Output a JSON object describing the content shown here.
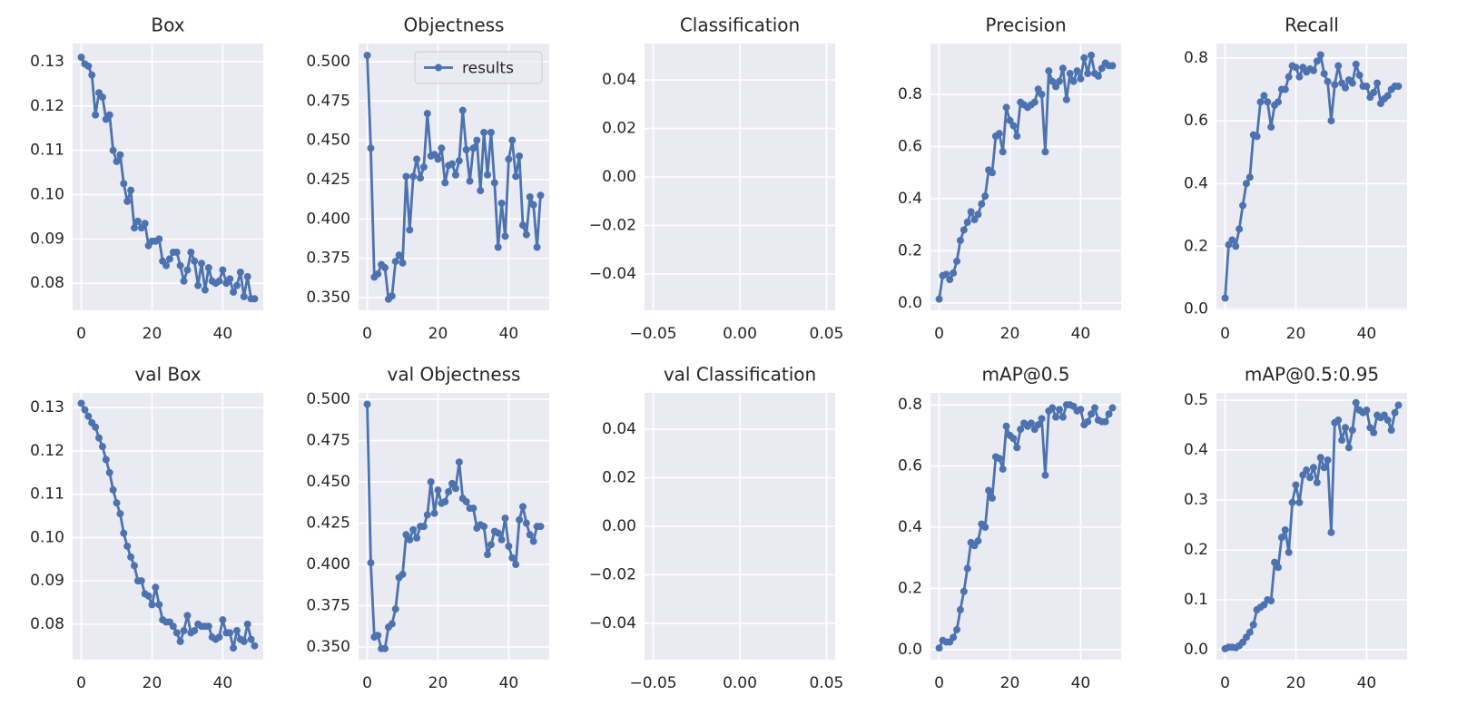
{
  "chart_data": [
    {
      "type": "line",
      "title": "Box",
      "x": [
        0,
        1,
        2,
        3,
        4,
        5,
        6,
        7,
        8,
        9,
        10,
        11,
        12,
        13,
        14,
        15,
        16,
        17,
        18,
        19,
        20,
        21,
        22,
        23,
        24,
        25,
        26,
        27,
        28,
        29,
        30,
        31,
        32,
        33,
        34,
        35,
        36,
        37,
        38,
        39,
        40,
        41,
        42,
        43,
        44,
        45,
        46,
        47,
        48,
        49
      ],
      "series": [
        {
          "color": "#4c72b0",
          "values": [
            0.131,
            0.1295,
            0.129,
            0.127,
            0.118,
            0.123,
            0.122,
            0.117,
            0.118,
            0.11,
            0.1075,
            0.109,
            0.1025,
            0.0985,
            0.101,
            0.0925,
            0.094,
            0.0925,
            0.0935,
            0.0885,
            0.0895,
            0.0895,
            0.09,
            0.085,
            0.084,
            0.0855,
            0.087,
            0.087,
            0.084,
            0.0805,
            0.083,
            0.087,
            0.085,
            0.0795,
            0.0845,
            0.0785,
            0.0835,
            0.0805,
            0.08,
            0.0805,
            0.083,
            0.08,
            0.081,
            0.078,
            0.0795,
            0.0825,
            0.077,
            0.0815,
            0.0765,
            0.0765
          ]
        }
      ],
      "xlim": [
        -2.45,
        51.45
      ],
      "ylim": [
        0.0739,
        0.1341
      ],
      "xticks": [
        0,
        20,
        40
      ],
      "yticks": [
        0.08,
        0.09,
        {
          "value": 0.1,
          "label": "0.10"
        },
        0.11,
        0.12,
        0.13
      ],
      "grid": true
    },
    {
      "type": "line",
      "title": "Objectness",
      "x": [
        0,
        1,
        2,
        3,
        4,
        5,
        6,
        7,
        8,
        9,
        10,
        11,
        12,
        13,
        14,
        15,
        16,
        17,
        18,
        19,
        20,
        21,
        22,
        23,
        24,
        25,
        26,
        27,
        28,
        29,
        30,
        31,
        32,
        33,
        34,
        35,
        36,
        37,
        38,
        39,
        40,
        41,
        42,
        43,
        44,
        45,
        46,
        47,
        48,
        49
      ],
      "series": [
        {
          "name": "results",
          "color": "#4c72b0",
          "values": [
            0.504,
            0.445,
            0.363,
            0.365,
            0.371,
            0.369,
            0.349,
            0.351,
            0.373,
            0.377,
            0.372,
            0.427,
            0.393,
            0.427,
            0.438,
            0.426,
            0.433,
            0.467,
            0.44,
            0.441,
            0.438,
            0.445,
            0.423,
            0.434,
            0.435,
            0.428,
            0.437,
            0.469,
            0.444,
            0.424,
            0.445,
            0.45,
            0.418,
            0.455,
            0.428,
            0.455,
            0.423,
            0.382,
            0.41,
            0.389,
            0.438,
            0.45,
            0.427,
            0.44,
            0.396,
            0.39,
            0.414,
            0.409,
            0.382,
            0.415
          ]
        }
      ],
      "xlim": [
        -2.45,
        51.45
      ],
      "ylim": [
        0.3419,
        0.5115
      ],
      "xticks": [
        0,
        20,
        40
      ],
      "yticks": [
        {
          "value": 0.35,
          "label": "0.350"
        },
        0.375,
        {
          "value": 0.4,
          "label": "0.400"
        },
        0.425,
        {
          "value": 0.45,
          "label": "0.450"
        },
        0.475,
        {
          "value": 0.5,
          "label": "0.500"
        }
      ],
      "grid": true,
      "legend": "upper right"
    },
    {
      "type": "line",
      "title": "Classification",
      "series": [],
      "xlim": [
        -0.055,
        0.055
      ],
      "ylim": [
        -0.055,
        0.055
      ],
      "xticks": [
        {
          "value": -0.05,
          "label": "−0.05"
        },
        {
          "value": 0,
          "label": "0.00"
        },
        0.05
      ],
      "yticks": [
        {
          "value": -0.04,
          "label": "−0.04"
        },
        {
          "value": -0.02,
          "label": "−0.02"
        },
        {
          "value": 0,
          "label": "0.00"
        },
        0.02,
        0.04
      ],
      "grid": true
    },
    {
      "type": "line",
      "title": "Precision",
      "x": [
        0,
        1,
        2,
        3,
        4,
        5,
        6,
        7,
        8,
        9,
        10,
        11,
        12,
        13,
        14,
        15,
        16,
        17,
        18,
        19,
        20,
        21,
        22,
        23,
        24,
        25,
        26,
        27,
        28,
        29,
        30,
        31,
        32,
        33,
        34,
        35,
        36,
        37,
        38,
        39,
        40,
        41,
        42,
        43,
        44,
        45,
        46,
        47,
        48,
        49
      ],
      "series": [
        {
          "color": "#4c72b0",
          "values": [
            0.015,
            0.105,
            0.11,
            0.09,
            0.115,
            0.16,
            0.24,
            0.28,
            0.31,
            0.35,
            0.32,
            0.34,
            0.38,
            0.41,
            0.51,
            0.5,
            0.64,
            0.65,
            0.58,
            0.75,
            0.7,
            0.68,
            0.64,
            0.77,
            0.76,
            0.75,
            0.76,
            0.77,
            0.82,
            0.8,
            0.58,
            0.89,
            0.85,
            0.83,
            0.85,
            0.9,
            0.78,
            0.88,
            0.85,
            0.89,
            0.86,
            0.94,
            0.88,
            0.95,
            0.88,
            0.87,
            0.9,
            0.92,
            0.91,
            0.91
          ]
        }
      ],
      "xlim": [
        -2.45,
        51.45
      ],
      "ylim": [
        -0.028,
        0.995
      ],
      "xticks": [
        0,
        20,
        40
      ],
      "yticks": [
        {
          "value": 0,
          "label": "0.0"
        },
        0.2,
        0.4,
        0.6,
        0.8
      ],
      "grid": true
    },
    {
      "type": "line",
      "title": "Recall",
      "x": [
        0,
        1,
        2,
        3,
        4,
        5,
        6,
        7,
        8,
        9,
        10,
        11,
        12,
        13,
        14,
        15,
        16,
        17,
        18,
        19,
        20,
        21,
        22,
        23,
        24,
        25,
        26,
        27,
        28,
        29,
        30,
        31,
        32,
        33,
        34,
        35,
        36,
        37,
        38,
        39,
        40,
        41,
        42,
        43,
        44,
        45,
        46,
        47,
        48,
        49
      ],
      "series": [
        {
          "color": "#4c72b0",
          "values": [
            0.035,
            0.205,
            0.22,
            0.2,
            0.255,
            0.33,
            0.4,
            0.42,
            0.555,
            0.55,
            0.66,
            0.68,
            0.66,
            0.58,
            0.65,
            0.66,
            0.7,
            0.7,
            0.74,
            0.775,
            0.77,
            0.74,
            0.77,
            0.755,
            0.765,
            0.76,
            0.79,
            0.81,
            0.75,
            0.725,
            0.6,
            0.715,
            0.775,
            0.72,
            0.705,
            0.73,
            0.72,
            0.78,
            0.745,
            0.71,
            0.71,
            0.675,
            0.69,
            0.72,
            0.655,
            0.67,
            0.68,
            0.7,
            0.71,
            0.71
          ]
        }
      ],
      "xlim": [
        -2.45,
        51.45
      ],
      "ylim": [
        -0.004,
        0.846
      ],
      "xticks": [
        0,
        20,
        40
      ],
      "yticks": [
        {
          "value": 0,
          "label": "0.0"
        },
        0.2,
        0.4,
        0.6,
        0.8
      ],
      "grid": true
    },
    {
      "type": "line",
      "title": "val Box",
      "x": [
        0,
        1,
        2,
        3,
        4,
        5,
        6,
        7,
        8,
        9,
        10,
        11,
        12,
        13,
        14,
        15,
        16,
        17,
        18,
        19,
        20,
        21,
        22,
        23,
        24,
        25,
        26,
        27,
        28,
        29,
        30,
        31,
        32,
        33,
        34,
        35,
        36,
        37,
        38,
        39,
        40,
        41,
        42,
        43,
        44,
        45,
        46,
        47,
        48,
        49
      ],
      "series": [
        {
          "color": "#4c72b0",
          "values": [
            0.131,
            0.1295,
            0.128,
            0.1265,
            0.1255,
            0.123,
            0.121,
            0.118,
            0.115,
            0.111,
            0.108,
            0.1055,
            0.101,
            0.098,
            0.0955,
            0.0935,
            0.09,
            0.09,
            0.087,
            0.0865,
            0.0845,
            0.0885,
            0.0845,
            0.081,
            0.0805,
            0.0805,
            0.0795,
            0.078,
            0.076,
            0.0785,
            0.082,
            0.078,
            0.0785,
            0.08,
            0.0795,
            0.0795,
            0.0795,
            0.077,
            0.0765,
            0.077,
            0.081,
            0.078,
            0.078,
            0.0745,
            0.0785,
            0.0765,
            0.076,
            0.08,
            0.0765,
            0.075
          ]
        }
      ],
      "xlim": [
        -2.45,
        51.45
      ],
      "ylim": [
        0.0718,
        0.1334
      ],
      "xticks": [
        0,
        20,
        40
      ],
      "yticks": [
        0.08,
        0.09,
        {
          "value": 0.1,
          "label": "0.10"
        },
        0.11,
        0.12,
        0.13
      ],
      "grid": true
    },
    {
      "type": "line",
      "title": "val Objectness",
      "x": [
        0,
        1,
        2,
        3,
        4,
        5,
        6,
        7,
        8,
        9,
        10,
        11,
        12,
        13,
        14,
        15,
        16,
        17,
        18,
        19,
        20,
        21,
        22,
        23,
        24,
        25,
        26,
        27,
        28,
        29,
        30,
        31,
        32,
        33,
        34,
        35,
        36,
        37,
        38,
        39,
        40,
        41,
        42,
        43,
        44,
        45,
        46,
        47,
        48,
        49
      ],
      "series": [
        {
          "color": "#4c72b0",
          "values": [
            0.497,
            0.401,
            0.356,
            0.357,
            0.349,
            0.349,
            0.362,
            0.364,
            0.373,
            0.392,
            0.394,
            0.418,
            0.415,
            0.421,
            0.416,
            0.423,
            0.423,
            0.43,
            0.45,
            0.431,
            0.445,
            0.437,
            0.438,
            0.444,
            0.449,
            0.446,
            0.462,
            0.44,
            0.438,
            0.434,
            0.434,
            0.422,
            0.424,
            0.423,
            0.406,
            0.412,
            0.42,
            0.419,
            0.415,
            0.428,
            0.411,
            0.404,
            0.4,
            0.427,
            0.435,
            0.425,
            0.418,
            0.414,
            0.423,
            0.423
          ]
        }
      ],
      "xlim": [
        -2.45,
        51.45
      ],
      "ylim": [
        0.3423,
        0.5039
      ],
      "xticks": [
        0,
        20,
        40
      ],
      "yticks": [
        {
          "value": 0.35,
          "label": "0.350"
        },
        0.375,
        {
          "value": 0.4,
          "label": "0.400"
        },
        0.425,
        {
          "value": 0.45,
          "label": "0.450"
        },
        0.475,
        {
          "value": 0.5,
          "label": "0.500"
        }
      ],
      "grid": true
    },
    {
      "type": "line",
      "title": "val Classification",
      "series": [],
      "xlim": [
        -0.055,
        0.055
      ],
      "ylim": [
        -0.055,
        0.055
      ],
      "xticks": [
        {
          "value": -0.05,
          "label": "−0.05"
        },
        {
          "value": 0,
          "label": "0.00"
        },
        0.05
      ],
      "yticks": [
        {
          "value": -0.04,
          "label": "−0.04"
        },
        {
          "value": -0.02,
          "label": "−0.02"
        },
        {
          "value": 0,
          "label": "0.00"
        },
        0.02,
        0.04
      ],
      "grid": true
    },
    {
      "type": "line",
      "title": "mAP@0.5",
      "x": [
        0,
        1,
        2,
        3,
        4,
        5,
        6,
        7,
        8,
        9,
        10,
        11,
        12,
        13,
        14,
        15,
        16,
        17,
        18,
        19,
        20,
        21,
        22,
        23,
        24,
        25,
        26,
        27,
        28,
        29,
        30,
        31,
        32,
        33,
        34,
        35,
        36,
        37,
        38,
        39,
        40,
        41,
        42,
        43,
        44,
        45,
        46,
        47,
        48,
        49
      ],
      "series": [
        {
          "color": "#4c72b0",
          "values": [
            0.005,
            0.03,
            0.025,
            0.025,
            0.04,
            0.065,
            0.13,
            0.19,
            0.265,
            0.35,
            0.34,
            0.355,
            0.41,
            0.4,
            0.52,
            0.495,
            0.63,
            0.625,
            0.59,
            0.73,
            0.7,
            0.69,
            0.66,
            0.72,
            0.74,
            0.73,
            0.74,
            0.72,
            0.735,
            0.755,
            0.57,
            0.78,
            0.79,
            0.76,
            0.785,
            0.76,
            0.8,
            0.8,
            0.795,
            0.78,
            0.785,
            0.735,
            0.745,
            0.77,
            0.79,
            0.75,
            0.745,
            0.745,
            0.77,
            0.79
          ]
        }
      ],
      "xlim": [
        -2.45,
        51.45
      ],
      "ylim": [
        -0.033,
        0.839
      ],
      "xticks": [
        0,
        20,
        40
      ],
      "yticks": [
        {
          "value": 0,
          "label": "0.0"
        },
        0.2,
        0.4,
        0.6,
        0.8
      ],
      "grid": true
    },
    {
      "type": "line",
      "title": "mAP@0.5:0.95",
      "x": [
        0,
        1,
        2,
        3,
        4,
        5,
        6,
        7,
        8,
        9,
        10,
        11,
        12,
        13,
        14,
        15,
        16,
        17,
        18,
        19,
        20,
        21,
        22,
        23,
        24,
        25,
        26,
        27,
        28,
        29,
        30,
        31,
        32,
        33,
        34,
        35,
        36,
        37,
        38,
        39,
        40,
        41,
        42,
        43,
        44,
        45,
        46,
        47,
        48,
        49
      ],
      "series": [
        {
          "color": "#4c72b0",
          "values": [
            0.002,
            0.005,
            0.005,
            0.004,
            0.008,
            0.015,
            0.025,
            0.035,
            0.05,
            0.08,
            0.085,
            0.09,
            0.1,
            0.098,
            0.175,
            0.165,
            0.225,
            0.24,
            0.195,
            0.295,
            0.33,
            0.295,
            0.35,
            0.36,
            0.345,
            0.365,
            0.335,
            0.385,
            0.365,
            0.38,
            0.235,
            0.455,
            0.46,
            0.42,
            0.445,
            0.405,
            0.44,
            0.495,
            0.48,
            0.475,
            0.48,
            0.445,
            0.435,
            0.47,
            0.465,
            0.47,
            0.46,
            0.44,
            0.475,
            0.49
          ]
        }
      ],
      "xlim": [
        -2.45,
        51.45
      ],
      "ylim": [
        -0.02,
        0.5146
      ],
      "xticks": [
        0,
        20,
        40
      ],
      "yticks": [
        {
          "value": 0,
          "label": "0.0"
        },
        0.1,
        0.2,
        0.3,
        0.4,
        0.5
      ],
      "grid": true
    }
  ]
}
